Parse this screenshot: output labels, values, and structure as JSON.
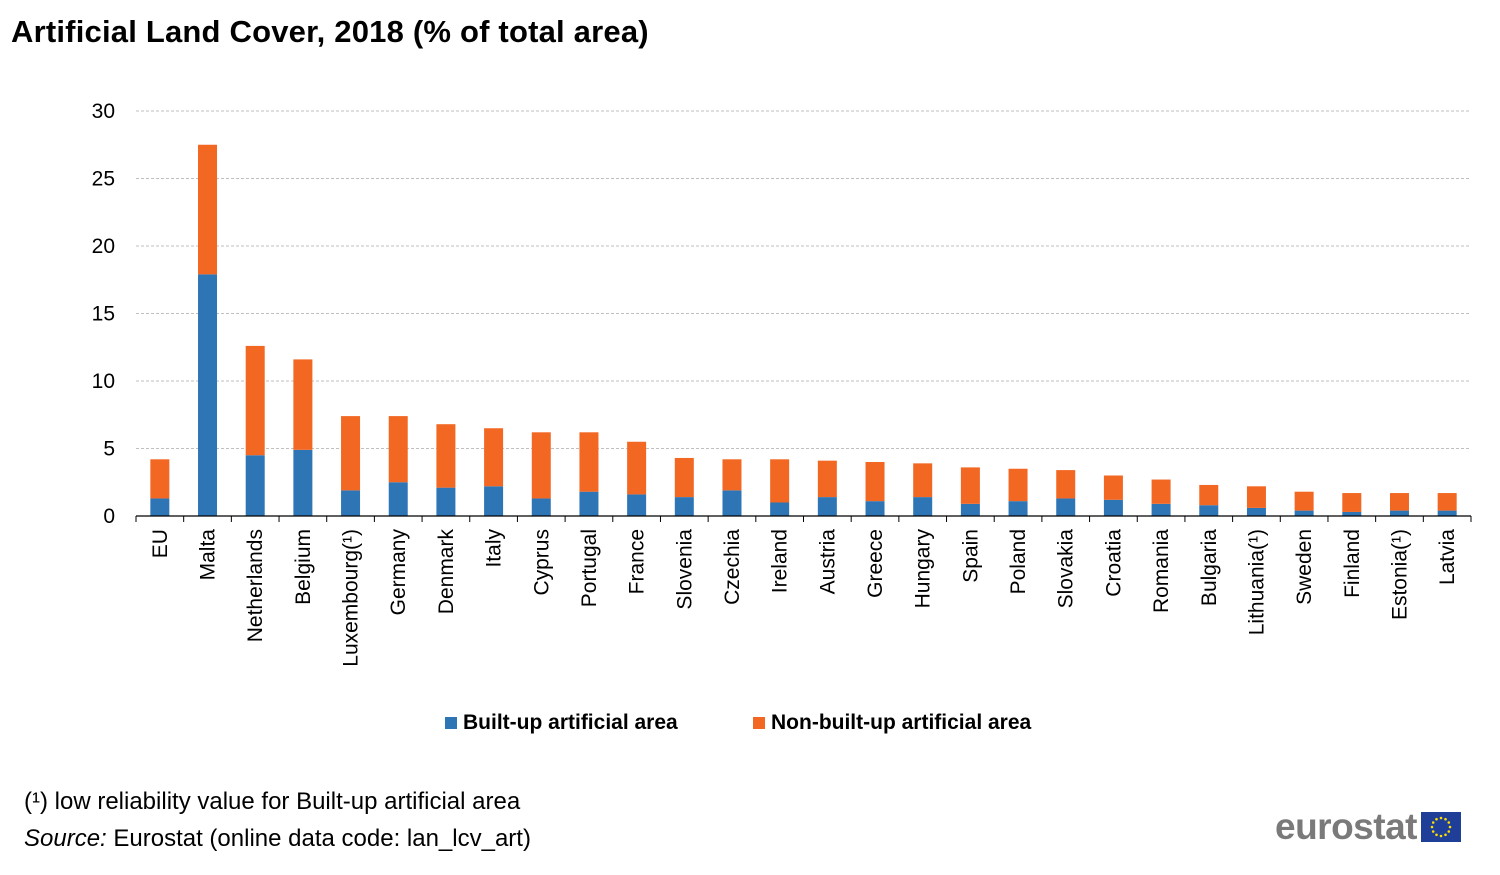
{
  "colors": {
    "built_up": "#2e75b6",
    "non_built_up": "#f26722",
    "grid": "#bfbfbf",
    "axis": "#000000",
    "logo_text": "#7a7a7a",
    "flag_blue": "#1f3e98",
    "flag_star": "#ffdd00"
  },
  "footnote": "(¹) low reliability value for Built-up artificial area",
  "source": {
    "label": "Source:",
    "text": " Eurostat (online data code: lan_lcv_art)"
  },
  "logo": {
    "text": "eurostat",
    "flag_icon": "eu-flag-icon"
  },
  "chart_data": {
    "type": "bar",
    "stacked": true,
    "title": "Artificial Land Cover, 2018 (% of total area)",
    "xlabel": "",
    "ylabel": "",
    "ylim": [
      0,
      30
    ],
    "yticks": [
      0,
      5,
      10,
      15,
      20,
      25,
      30
    ],
    "grid": true,
    "legend_position": "bottom",
    "categories": [
      "EU",
      "Malta",
      "Netherlands",
      "Belgium",
      "Luxembourg(¹)",
      "Germany",
      "Denmark",
      "Italy",
      "Cyprus",
      "Portugal",
      "France",
      "Slovenia",
      "Czechia",
      "Ireland",
      "Austria",
      "Greece",
      "Hungary",
      "Spain",
      "Poland",
      "Slovakia",
      "Croatia",
      "Romania",
      "Bulgaria",
      "Lithuania(¹)",
      "Sweden",
      "Finland",
      "Estonia(¹)",
      "Latvia"
    ],
    "series": [
      {
        "name": "Built-up artificial area",
        "values": [
          1.3,
          17.9,
          4.5,
          4.9,
          1.9,
          2.5,
          2.1,
          2.2,
          1.3,
          1.8,
          1.6,
          1.4,
          1.9,
          1.0,
          1.4,
          1.1,
          1.4,
          0.9,
          1.1,
          1.3,
          1.2,
          0.9,
          0.8,
          0.6,
          0.4,
          0.3,
          0.4,
          0.4
        ]
      },
      {
        "name": "Non-built-up artificial area",
        "values": [
          2.9,
          9.6,
          8.1,
          6.7,
          5.5,
          4.9,
          4.7,
          4.3,
          4.9,
          4.4,
          3.9,
          2.9,
          2.3,
          3.2,
          2.7,
          2.9,
          2.5,
          2.7,
          2.4,
          2.1,
          1.8,
          1.8,
          1.5,
          1.6,
          1.4,
          1.4,
          1.3,
          1.3
        ]
      }
    ]
  }
}
